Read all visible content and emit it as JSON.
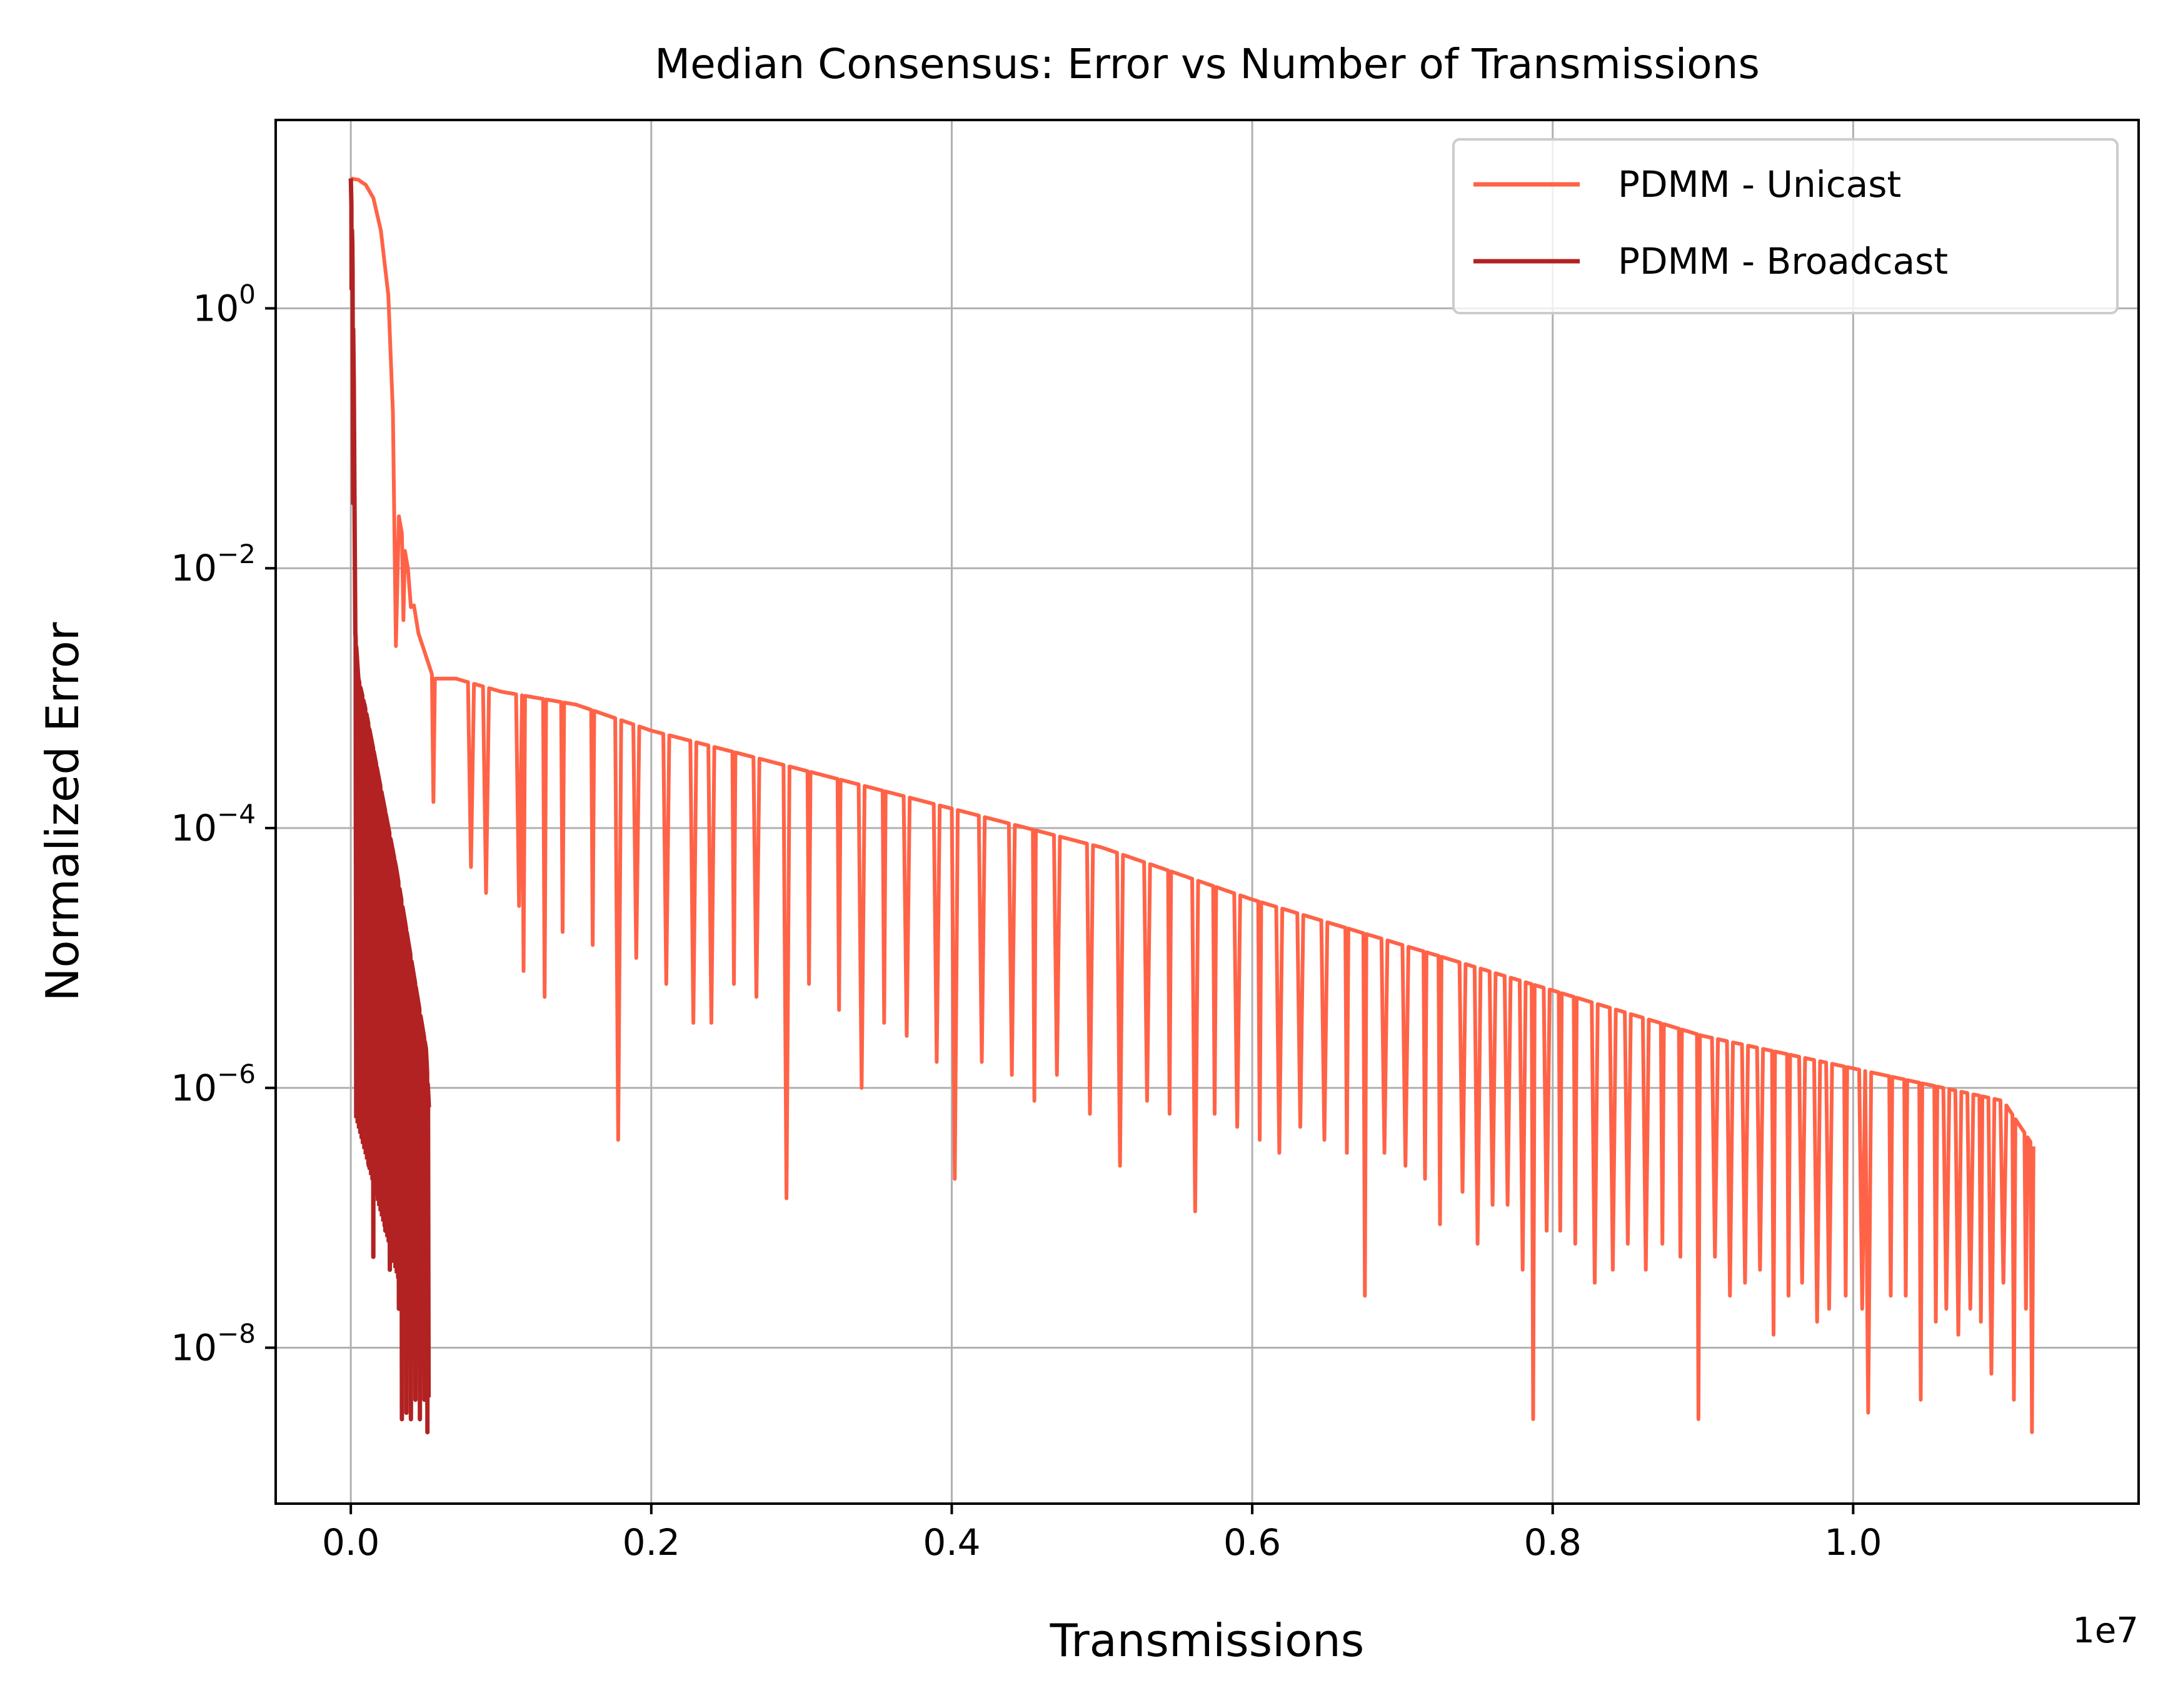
{
  "chart_data": {
    "type": "line",
    "title": "Median Consensus: Error vs Number of Transmissions",
    "xlabel": "Transmissions",
    "ylabel": "Normalized Error",
    "x_offset_label": "1e7",
    "x_scale": "linear",
    "y_scale": "log",
    "xlim": [
      -500000,
      11900000
    ],
    "ylim_log10": [
      -9.2,
      1.45
    ],
    "x_ticks": [
      0,
      2000000,
      4000000,
      6000000,
      8000000,
      10000000
    ],
    "x_tick_labels": [
      "0.0",
      "0.2",
      "0.4",
      "0.6",
      "0.8",
      "1.0"
    ],
    "y_ticks_log10": [
      0,
      -2,
      -4,
      -6,
      -8
    ],
    "y_tick_labels": [
      {
        "base": "10",
        "exp": "0"
      },
      {
        "base": "10",
        "exp": "−2"
      },
      {
        "base": "10",
        "exp": "−4"
      },
      {
        "base": "10",
        "exp": "−6"
      },
      {
        "base": "10",
        "exp": "−8"
      }
    ],
    "grid": true,
    "legend_position": "top-right",
    "series": [
      {
        "name": "PDMM - Unicast",
        "color": "#ff6347",
        "envelope_log10": [
          [
            0,
            1.0
          ],
          [
            50000,
            0.99
          ],
          [
            100000,
            0.95
          ],
          [
            150000,
            0.85
          ],
          [
            200000,
            0.6
          ],
          [
            250000,
            0.1
          ],
          [
            280000,
            -0.8
          ],
          [
            320000,
            -1.6
          ],
          [
            380000,
            -2.0
          ],
          [
            450000,
            -2.5
          ],
          [
            550000,
            -2.85
          ],
          [
            700000,
            -2.85
          ],
          [
            1000000,
            -2.95
          ],
          [
            1500000,
            -3.05
          ],
          [
            2000000,
            -3.25
          ],
          [
            3000000,
            -3.55
          ],
          [
            4000000,
            -3.85
          ],
          [
            5000000,
            -4.15
          ],
          [
            6000000,
            -4.55
          ],
          [
            7000000,
            -4.9
          ],
          [
            8000000,
            -5.25
          ],
          [
            9000000,
            -5.6
          ],
          [
            10000000,
            -5.85
          ],
          [
            11000000,
            -6.1
          ],
          [
            11200000,
            -6.45
          ]
        ],
        "dips": [
          [
            300000,
            -2.6
          ],
          [
            350000,
            -2.4
          ],
          [
            400000,
            -2.3
          ],
          [
            550000,
            -3.8
          ],
          [
            800000,
            -4.3
          ],
          [
            900000,
            -4.5
          ],
          [
            1120000,
            -4.6
          ],
          [
            1150000,
            -5.1
          ],
          [
            1290000,
            -5.3
          ],
          [
            1410000,
            -4.8
          ],
          [
            1610000,
            -4.9
          ],
          [
            1780000,
            -6.4
          ],
          [
            1900000,
            -5.0
          ],
          [
            2100000,
            -5.2
          ],
          [
            2280000,
            -5.5
          ],
          [
            2400000,
            -5.5
          ],
          [
            2550000,
            -5.2
          ],
          [
            2700000,
            -5.3
          ],
          [
            2900000,
            -6.85
          ],
          [
            3050000,
            -5.2
          ],
          [
            3250000,
            -5.4
          ],
          [
            3400000,
            -6.0
          ],
          [
            3550000,
            -5.5
          ],
          [
            3700000,
            -5.6
          ],
          [
            3900000,
            -5.8
          ],
          [
            4020000,
            -6.7
          ],
          [
            4200000,
            -5.8
          ],
          [
            4400000,
            -5.9
          ],
          [
            4550000,
            -6.1
          ],
          [
            4700000,
            -5.9
          ],
          [
            4920000,
            -6.2
          ],
          [
            5120000,
            -6.6
          ],
          [
            5300000,
            -6.1
          ],
          [
            5450000,
            -6.2
          ],
          [
            5620000,
            -6.95
          ],
          [
            5750000,
            -6.2
          ],
          [
            5900000,
            -6.3
          ],
          [
            6050000,
            -6.4
          ],
          [
            6180000,
            -6.5
          ],
          [
            6320000,
            -6.3
          ],
          [
            6480000,
            -6.4
          ],
          [
            6630000,
            -6.5
          ],
          [
            6750000,
            -7.6
          ],
          [
            6880000,
            -6.5
          ],
          [
            7020000,
            -6.6
          ],
          [
            7150000,
            -6.7
          ],
          [
            7250000,
            -7.05
          ],
          [
            7400000,
            -6.8
          ],
          [
            7500000,
            -7.2
          ],
          [
            7600000,
            -6.9
          ],
          [
            7700000,
            -6.9
          ],
          [
            7800000,
            -7.4
          ],
          [
            7870000,
            -8.55
          ],
          [
            7960000,
            -7.1
          ],
          [
            8050000,
            -7.1
          ],
          [
            8150000,
            -7.2
          ],
          [
            8280000,
            -7.5
          ],
          [
            8400000,
            -7.4
          ],
          [
            8500000,
            -7.2
          ],
          [
            8620000,
            -7.4
          ],
          [
            8730000,
            -7.2
          ],
          [
            8850000,
            -7.3
          ],
          [
            8970000,
            -8.55
          ],
          [
            9080000,
            -7.3
          ],
          [
            9180000,
            -7.6
          ],
          [
            9280000,
            -7.5
          ],
          [
            9380000,
            -7.4
          ],
          [
            9470000,
            -7.9
          ],
          [
            9570000,
            -7.6
          ],
          [
            9660000,
            -7.5
          ],
          [
            9760000,
            -7.8
          ],
          [
            9840000,
            -7.7
          ],
          [
            9950000,
            -7.6
          ],
          [
            10060000,
            -7.7
          ],
          [
            10100000,
            -8.5
          ],
          [
            10250000,
            -7.6
          ],
          [
            10350000,
            -7.6
          ],
          [
            10450000,
            -8.4
          ],
          [
            10550000,
            -7.8
          ],
          [
            10620000,
            -7.7
          ],
          [
            10700000,
            -7.9
          ],
          [
            10780000,
            -7.7
          ],
          [
            10850000,
            -7.8
          ],
          [
            10920000,
            -8.2
          ],
          [
            11000000,
            -7.5
          ],
          [
            11070000,
            -8.4
          ],
          [
            11150000,
            -7.7
          ],
          [
            11190000,
            -8.65
          ]
        ]
      },
      {
        "name": "PDMM - Broadcast",
        "color": "#b22222",
        "envelope_log10": [
          [
            0,
            1.0
          ],
          [
            10000,
            0.5
          ],
          [
            20000,
            -0.6
          ],
          [
            30000,
            -2.5
          ],
          [
            50000,
            -2.85
          ],
          [
            100000,
            -3.1
          ],
          [
            200000,
            -3.7
          ],
          [
            300000,
            -4.3
          ],
          [
            400000,
            -5.0
          ],
          [
            500000,
            -5.7
          ],
          [
            520000,
            -6.15
          ]
        ],
        "dips": [
          [
            5000,
            0.15
          ],
          [
            15000,
            -1.5
          ],
          [
            35000,
            -4.6
          ],
          [
            60000,
            -5.3
          ],
          [
            80000,
            -6.4
          ],
          [
            100000,
            -5.9
          ],
          [
            120000,
            -6.6
          ],
          [
            150000,
            -7.3
          ],
          [
            170000,
            -6.7
          ],
          [
            200000,
            -6.9
          ],
          [
            230000,
            -7.1
          ],
          [
            260000,
            -7.4
          ],
          [
            290000,
            -7.2
          ],
          [
            320000,
            -7.7
          ],
          [
            340000,
            -8.55
          ],
          [
            370000,
            -8.5
          ],
          [
            400000,
            -8.55
          ],
          [
            430000,
            -8.4
          ],
          [
            460000,
            -8.55
          ],
          [
            490000,
            -8.4
          ],
          [
            510000,
            -8.65
          ]
        ]
      }
    ]
  }
}
